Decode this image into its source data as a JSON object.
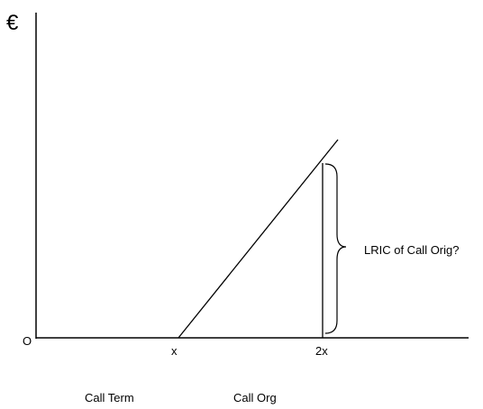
{
  "axes": {
    "y_label": "€",
    "origin_label": "O"
  },
  "ticks": {
    "x": "x",
    "two_x": "2x"
  },
  "annotation": "LRIC of Call Orig?",
  "bottom_labels": {
    "left": "Call Term",
    "right": "Call Org"
  }
}
